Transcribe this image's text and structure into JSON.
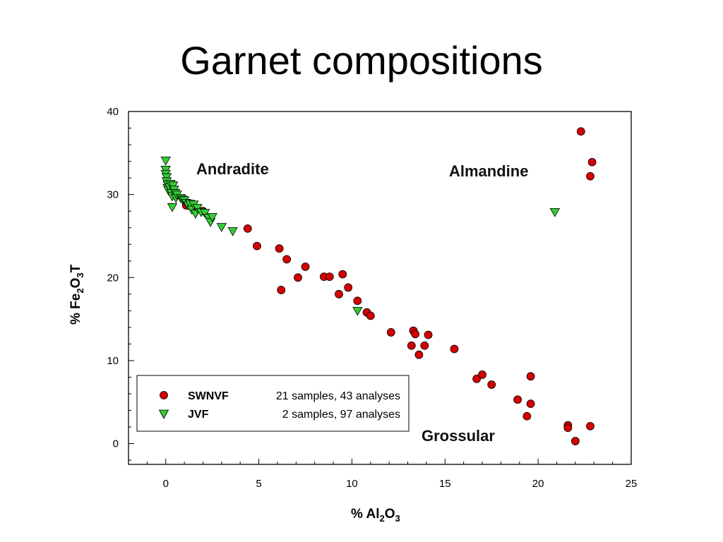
{
  "title": "Garnet compositions",
  "chart_data": {
    "type": "scatter",
    "title": "Garnet compositions",
    "xlabel": {
      "pre": "%  Al",
      "sub1": "2",
      "mid": "O",
      "sub2": "3"
    },
    "ylabel": {
      "pre": "%  Fe",
      "sub1": "2",
      "mid": "O",
      "sub2": "3",
      "post": "T"
    },
    "xlim": [
      -2,
      25
    ],
    "ylim": [
      -2.5,
      40
    ],
    "xticks": [
      0,
      5,
      10,
      15,
      20,
      25
    ],
    "yticks": [
      0,
      10,
      20,
      30,
      40
    ],
    "grid": false,
    "legend_position": "lower-left",
    "annotations": [
      "Andradite",
      "Almandine",
      "Grossular"
    ],
    "series": [
      {
        "name": "SWNVF",
        "legend_detail": "21 samples, 43 analyses",
        "marker": "circle",
        "color": "#d40000",
        "points": [
          [
            1.1,
            28.7
          ],
          [
            1.5,
            28.5
          ],
          [
            2.0,
            28.0
          ],
          [
            4.4,
            25.9
          ],
          [
            4.9,
            23.8
          ],
          [
            6.1,
            23.5
          ],
          [
            6.2,
            18.5
          ],
          [
            6.5,
            22.2
          ],
          [
            7.1,
            20.0
          ],
          [
            7.5,
            21.3
          ],
          [
            8.5,
            20.1
          ],
          [
            8.8,
            20.1
          ],
          [
            9.3,
            18.0
          ],
          [
            9.5,
            20.4
          ],
          [
            9.8,
            18.8
          ],
          [
            10.3,
            17.2
          ],
          [
            10.8,
            15.8
          ],
          [
            11.0,
            15.4
          ],
          [
            12.1,
            13.4
          ],
          [
            13.3,
            13.6
          ],
          [
            13.4,
            13.2
          ],
          [
            13.2,
            11.8
          ],
          [
            13.6,
            10.7
          ],
          [
            13.9,
            11.8
          ],
          [
            14.1,
            13.1
          ],
          [
            15.5,
            11.4
          ],
          [
            16.7,
            7.8
          ],
          [
            17.0,
            8.3
          ],
          [
            17.5,
            7.1
          ],
          [
            18.9,
            5.3
          ],
          [
            19.4,
            3.3
          ],
          [
            19.6,
            8.1
          ],
          [
            19.6,
            4.8
          ],
          [
            21.6,
            2.2
          ],
          [
            21.6,
            1.9
          ],
          [
            22.0,
            0.3
          ],
          [
            22.8,
            2.1
          ],
          [
            22.3,
            37.6
          ],
          [
            22.9,
            33.9
          ],
          [
            22.8,
            32.2
          ]
        ]
      },
      {
        "name": "JVF",
        "legend_detail": "2 samples,  97 analyses",
        "marker": "triangle-down",
        "color": "#33cc33",
        "points": [
          [
            0.0,
            34.1
          ],
          [
            0.0,
            33.0
          ],
          [
            0.0,
            32.5
          ],
          [
            0.05,
            32.1
          ],
          [
            0.05,
            31.6
          ],
          [
            0.1,
            31.2
          ],
          [
            0.1,
            30.8
          ],
          [
            0.15,
            30.5
          ],
          [
            0.2,
            30.9
          ],
          [
            0.25,
            31.3
          ],
          [
            0.3,
            30.2
          ],
          [
            0.35,
            29.8
          ],
          [
            0.4,
            31.1
          ],
          [
            0.45,
            30.6
          ],
          [
            0.5,
            30.2
          ],
          [
            0.55,
            29.6
          ],
          [
            0.6,
            30.0
          ],
          [
            0.35,
            28.5
          ],
          [
            0.8,
            29.6
          ],
          [
            0.9,
            29.4
          ],
          [
            1.0,
            29.3
          ],
          [
            1.1,
            29.0
          ],
          [
            1.2,
            28.7
          ],
          [
            1.3,
            28.9
          ],
          [
            1.4,
            28.2
          ],
          [
            1.5,
            28.8
          ],
          [
            1.6,
            27.7
          ],
          [
            1.7,
            28.4
          ],
          [
            1.9,
            27.9
          ],
          [
            2.1,
            27.8
          ],
          [
            2.3,
            27.2
          ],
          [
            2.4,
            26.7
          ],
          [
            2.5,
            27.3
          ],
          [
            3.0,
            26.1
          ],
          [
            3.6,
            25.6
          ],
          [
            10.3,
            16.0
          ],
          [
            20.9,
            27.9
          ]
        ]
      }
    ]
  }
}
